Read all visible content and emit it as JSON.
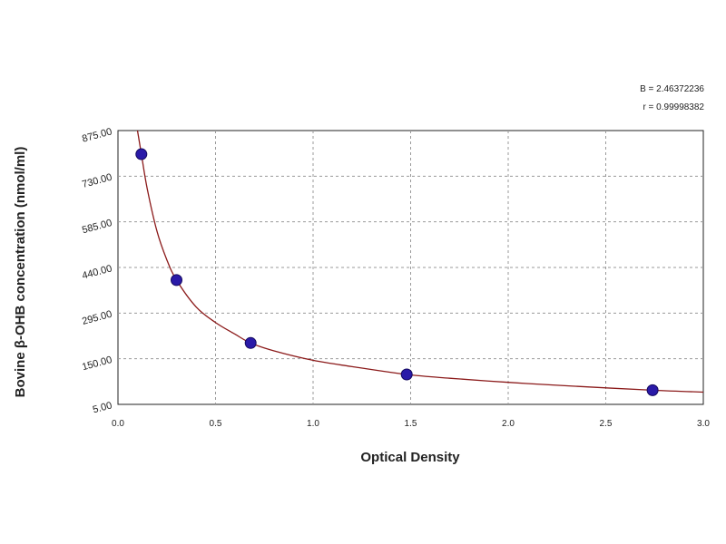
{
  "stats": {
    "line1": "B = 2.46372236",
    "line2": "r = 0.99998382"
  },
  "chart_data": {
    "type": "scatter",
    "xlabel": "Optical Density",
    "ylabel": "Bovine β-OHB concentration (nmol/ml)",
    "xlim": [
      0.0,
      3.0
    ],
    "ylim": [
      5.0,
      875.0
    ],
    "x_ticks": [
      0.0,
      0.5,
      1.0,
      1.5,
      2.0,
      2.5,
      3.0
    ],
    "x_tick_labels": [
      "0.0",
      "0.5",
      "1.0",
      "1.5",
      "2.0",
      "2.5",
      "3.0"
    ],
    "y_ticks": [
      5.0,
      150.0,
      295.0,
      440.0,
      585.0,
      730.0,
      875.0
    ],
    "y_tick_labels": [
      "5.00",
      "150.00",
      "295.00",
      "440.00",
      "585.00",
      "730.00",
      "875.00"
    ],
    "grid": true,
    "series": [
      {
        "kind": "points",
        "x": [
          0.12,
          0.3,
          0.68,
          1.48,
          2.74
        ],
        "y": [
          800,
          400,
          200,
          100,
          50
        ],
        "color": "#2a1aa8"
      },
      {
        "kind": "fit-curve",
        "x": [
          0.1,
          0.12,
          0.15,
          0.2,
          0.25,
          0.3,
          0.4,
          0.5,
          0.6,
          0.68,
          0.8,
          1.0,
          1.2,
          1.48,
          1.7,
          2.0,
          2.3,
          2.74,
          3.0
        ],
        "y": [
          875,
          800,
          690,
          555,
          465,
          400,
          315,
          265,
          228,
          200,
          175,
          145,
          125,
          100,
          88,
          75,
          64,
          50,
          44
        ],
        "color": "#8b1a1a"
      }
    ]
  }
}
